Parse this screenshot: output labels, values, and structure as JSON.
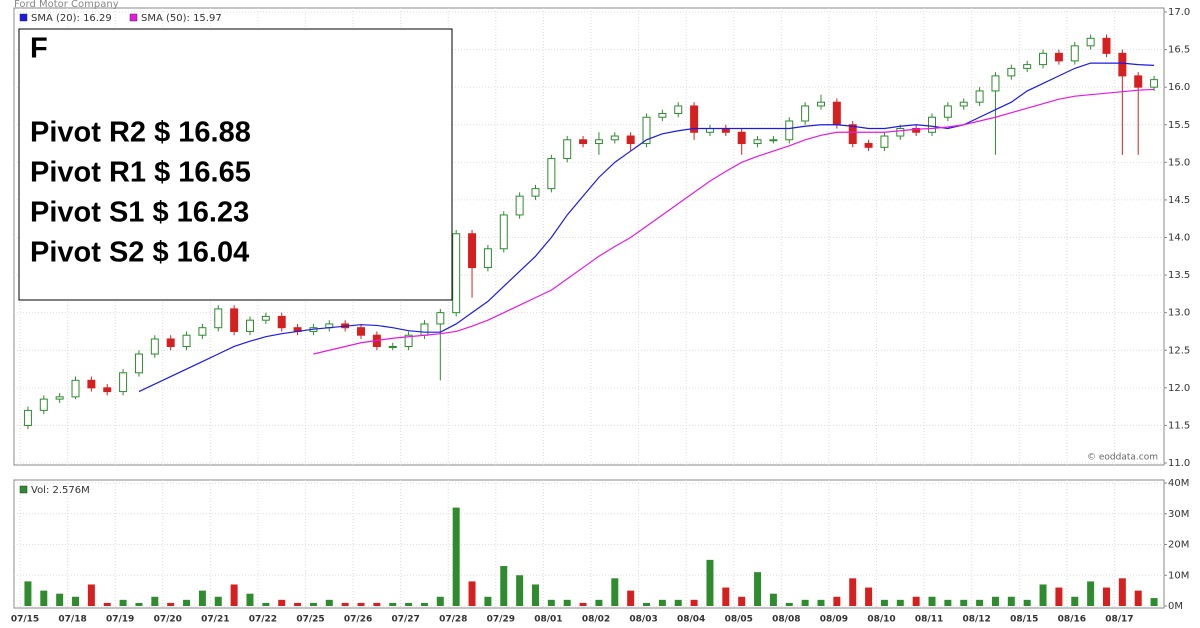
{
  "chart_data": [
    {
      "type": "candlestick",
      "title": "Ford Motor Company",
      "source": "© eoddata.com",
      "annotations": [
        "F",
        "Pivot R2 $ 16.88",
        "Pivot R1 $ 16.65",
        "Pivot S1 $ 16.23",
        "Pivot S2 $ 16.04"
      ],
      "up_color": "#2e8b2e",
      "down_color": "#d62020",
      "grid": true,
      "categories": [
        "07/15",
        null,
        null,
        "07/18",
        null,
        null,
        "07/19",
        null,
        null,
        "07/20",
        null,
        null,
        "07/21",
        null,
        null,
        "07/22",
        null,
        null,
        "07/25",
        null,
        null,
        "07/26",
        null,
        null,
        "07/27",
        null,
        null,
        "07/28",
        null,
        null,
        "07/29",
        null,
        null,
        "08/01",
        null,
        null,
        "08/02",
        null,
        null,
        "08/03",
        null,
        null,
        "08/04",
        null,
        null,
        "08/05",
        null,
        null,
        "08/08",
        null,
        null,
        "08/09",
        null,
        null,
        "08/10",
        null,
        null,
        "08/11",
        null,
        null,
        "08/12",
        null,
        null,
        "08/15",
        null,
        null,
        "08/16",
        null,
        null,
        "08/17",
        null,
        null
      ],
      "open": [
        11.5,
        11.7,
        11.85,
        11.88,
        12.1,
        12.0,
        11.95,
        12.2,
        12.45,
        12.65,
        12.55,
        12.7,
        12.8,
        13.05,
        12.75,
        12.9,
        12.95,
        12.8,
        12.75,
        12.8,
        12.85,
        12.8,
        12.7,
        12.55,
        12.55,
        12.7,
        12.85,
        13.0,
        14.05,
        13.6,
        13.85,
        14.3,
        14.55,
        14.65,
        15.05,
        15.3,
        15.25,
        15.3,
        15.35,
        15.25,
        15.6,
        15.65,
        15.75,
        15.4,
        15.45,
        15.4,
        15.25,
        15.3,
        15.3,
        15.55,
        15.75,
        15.8,
        15.5,
        15.25,
        15.2,
        15.35,
        15.45,
        15.4,
        15.6,
        15.75,
        15.8,
        15.95,
        16.15,
        16.25,
        16.3,
        16.45,
        16.35,
        16.55,
        16.65,
        16.45,
        16.15,
        16.0
      ],
      "high": [
        11.75,
        11.9,
        11.93,
        12.15,
        12.15,
        12.05,
        12.25,
        12.5,
        12.7,
        12.7,
        12.75,
        12.85,
        13.1,
        13.1,
        12.95,
        13.0,
        13.0,
        12.85,
        12.85,
        12.9,
        12.9,
        12.85,
        12.75,
        12.6,
        12.75,
        12.9,
        13.05,
        14.1,
        14.1,
        13.9,
        14.35,
        14.6,
        14.7,
        15.1,
        15.35,
        15.35,
        15.4,
        15.4,
        15.4,
        15.65,
        15.7,
        15.8,
        15.8,
        15.5,
        15.5,
        15.45,
        15.35,
        15.35,
        15.6,
        15.8,
        15.9,
        15.85,
        15.55,
        15.3,
        15.4,
        15.5,
        15.5,
        15.65,
        15.8,
        15.85,
        16.0,
        16.2,
        16.3,
        16.35,
        16.5,
        16.5,
        16.6,
        16.7,
        16.7,
        16.5,
        16.2,
        16.15
      ],
      "low": [
        11.45,
        11.65,
        11.8,
        11.85,
        11.95,
        11.9,
        11.9,
        12.15,
        12.4,
        12.5,
        12.5,
        12.65,
        12.75,
        12.7,
        12.7,
        12.85,
        12.75,
        12.7,
        12.7,
        12.75,
        12.75,
        12.65,
        12.5,
        12.5,
        12.5,
        12.65,
        12.1,
        12.95,
        13.2,
        13.55,
        13.8,
        14.25,
        14.5,
        14.6,
        15.0,
        15.2,
        15.1,
        15.25,
        15.15,
        15.2,
        15.55,
        15.6,
        15.3,
        15.35,
        15.35,
        15.1,
        15.2,
        15.25,
        15.25,
        15.5,
        15.7,
        15.45,
        15.2,
        15.15,
        15.15,
        15.3,
        15.35,
        15.35,
        15.55,
        15.7,
        15.75,
        15.1,
        16.1,
        16.2,
        16.25,
        16.3,
        16.3,
        16.5,
        16.4,
        15.1,
        15.1,
        15.95
      ],
      "close": [
        11.7,
        11.85,
        11.88,
        12.1,
        12.0,
        11.95,
        12.2,
        12.45,
        12.65,
        12.55,
        12.7,
        12.8,
        13.05,
        12.75,
        12.9,
        12.95,
        12.8,
        12.75,
        12.8,
        12.85,
        12.8,
        12.7,
        12.55,
        12.55,
        12.7,
        12.85,
        13.0,
        14.05,
        13.6,
        13.85,
        14.3,
        14.55,
        14.65,
        15.05,
        15.3,
        15.25,
        15.3,
        15.35,
        15.25,
        15.6,
        15.65,
        15.75,
        15.4,
        15.45,
        15.4,
        15.25,
        15.3,
        15.3,
        15.55,
        15.75,
        15.8,
        15.5,
        15.25,
        15.2,
        15.35,
        15.45,
        15.4,
        15.6,
        15.75,
        15.8,
        15.95,
        16.15,
        16.25,
        16.3,
        16.45,
        16.35,
        16.55,
        16.65,
        16.45,
        16.15,
        16.0,
        16.1
      ],
      "series": [
        {
          "name": "SMA (20): 16.29",
          "color": "#1a1ae6",
          "values": [
            null,
            null,
            null,
            null,
            null,
            null,
            null,
            11.95,
            12.05,
            12.15,
            12.25,
            12.35,
            12.45,
            12.55,
            12.62,
            12.68,
            12.72,
            12.75,
            12.78,
            12.8,
            12.82,
            12.84,
            12.83,
            12.8,
            12.76,
            12.74,
            12.74,
            12.85,
            13.0,
            13.15,
            13.35,
            13.55,
            13.75,
            14.0,
            14.3,
            14.55,
            14.8,
            15.0,
            15.15,
            15.3,
            15.38,
            15.42,
            15.45,
            15.45,
            15.45,
            15.45,
            15.45,
            15.45,
            15.45,
            15.48,
            15.5,
            15.5,
            15.48,
            15.45,
            15.45,
            15.48,
            15.5,
            15.48,
            15.45,
            15.5,
            15.6,
            15.7,
            15.8,
            15.95,
            16.05,
            16.15,
            16.25,
            16.32,
            16.32,
            16.32,
            16.3,
            16.29
          ]
        },
        {
          "name": "SMA (50): 15.97",
          "color": "#e619e6",
          "values": [
            null,
            null,
            null,
            null,
            null,
            null,
            null,
            null,
            null,
            null,
            null,
            null,
            null,
            null,
            null,
            null,
            null,
            null,
            12.45,
            12.5,
            12.55,
            12.6,
            12.63,
            12.66,
            12.68,
            12.7,
            12.72,
            12.75,
            12.82,
            12.9,
            13.0,
            13.1,
            13.2,
            13.3,
            13.45,
            13.6,
            13.75,
            13.88,
            14.0,
            14.15,
            14.3,
            14.45,
            14.6,
            14.75,
            14.88,
            15.0,
            15.08,
            15.15,
            15.22,
            15.3,
            15.36,
            15.4,
            15.4,
            15.4,
            15.4,
            15.42,
            15.44,
            15.45,
            15.47,
            15.5,
            15.55,
            15.6,
            15.66,
            15.72,
            15.78,
            15.84,
            15.88,
            15.9,
            15.92,
            15.94,
            15.96,
            15.97
          ]
        }
      ],
      "ylim": [
        11,
        17
      ],
      "yticks": [
        {
          "value": 11,
          "label": "11.0"
        },
        11.5,
        {
          "value": 12,
          "label": "12.0"
        },
        12.5,
        {
          "value": 13,
          "label": "13.0"
        },
        13.5,
        {
          "value": 14,
          "label": "14.0"
        },
        14.5,
        {
          "value": 15,
          "label": "15.0"
        },
        15.5,
        {
          "value": 16,
          "label": "16.0"
        },
        16.5,
        {
          "value": 17,
          "label": "17.0"
        }
      ]
    },
    {
      "type": "bar",
      "up_color": "#2e8b2e",
      "down_color": "#d62020",
      "grid": true,
      "series": [
        {
          "name": "Vol: 2.576M",
          "color": "#2e8b2e",
          "values": [
            8,
            5,
            4,
            3,
            7,
            1,
            2,
            1,
            3,
            1,
            2,
            5,
            3,
            7,
            4,
            1,
            2,
            1,
            1,
            2,
            1,
            1,
            1,
            1,
            1,
            1,
            3,
            32,
            8,
            3,
            13,
            10,
            7,
            2,
            2,
            1,
            2,
            9,
            5,
            1,
            2,
            2,
            2,
            15,
            6,
            3,
            11,
            4,
            1,
            2,
            2,
            3,
            9,
            6,
            2,
            2,
            3,
            3,
            2,
            2,
            2,
            3,
            3,
            2,
            7,
            6,
            3,
            8,
            6,
            9,
            5,
            2.576
          ]
        }
      ],
      "ylim": [
        0,
        40
      ],
      "yticks": [
        {
          "value": 0,
          "label": "0M"
        },
        {
          "value": 10,
          "label": "10M"
        },
        {
          "value": 20,
          "label": "20M"
        },
        {
          "value": 30,
          "label": "30M"
        },
        {
          "value": 40,
          "label": "40M"
        }
      ]
    }
  ]
}
